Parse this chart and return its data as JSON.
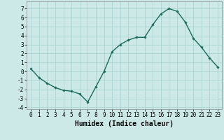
{
  "x": [
    0,
    1,
    2,
    3,
    4,
    5,
    6,
    7,
    8,
    9,
    10,
    11,
    12,
    13,
    14,
    15,
    16,
    17,
    18,
    19,
    20,
    21,
    22,
    23
  ],
  "y": [
    0.3,
    -0.7,
    -1.3,
    -1.8,
    -2.1,
    -2.2,
    -2.5,
    -3.4,
    -1.7,
    0.0,
    2.2,
    3.0,
    3.5,
    3.8,
    3.8,
    5.2,
    6.4,
    7.0,
    6.7,
    5.5,
    3.7,
    2.7,
    1.5,
    0.5
  ],
  "xlabel": "Humidex (Indice chaleur)",
  "xlim": [
    -0.5,
    23.5
  ],
  "ylim": [
    -4.2,
    7.8
  ],
  "yticks": [
    -4,
    -3,
    -2,
    -1,
    0,
    1,
    2,
    3,
    4,
    5,
    6,
    7
  ],
  "xticks": [
    0,
    1,
    2,
    3,
    4,
    5,
    6,
    7,
    8,
    9,
    10,
    11,
    12,
    13,
    14,
    15,
    16,
    17,
    18,
    19,
    20,
    21,
    22,
    23
  ],
  "line_color": "#1a6b5a",
  "marker": "D",
  "marker_size": 1.8,
  "bg_color": "#cce9e8",
  "grid_color": "#aad4d2",
  "xlabel_fontsize": 7,
  "tick_fontsize": 5.5,
  "line_width": 1.0
}
